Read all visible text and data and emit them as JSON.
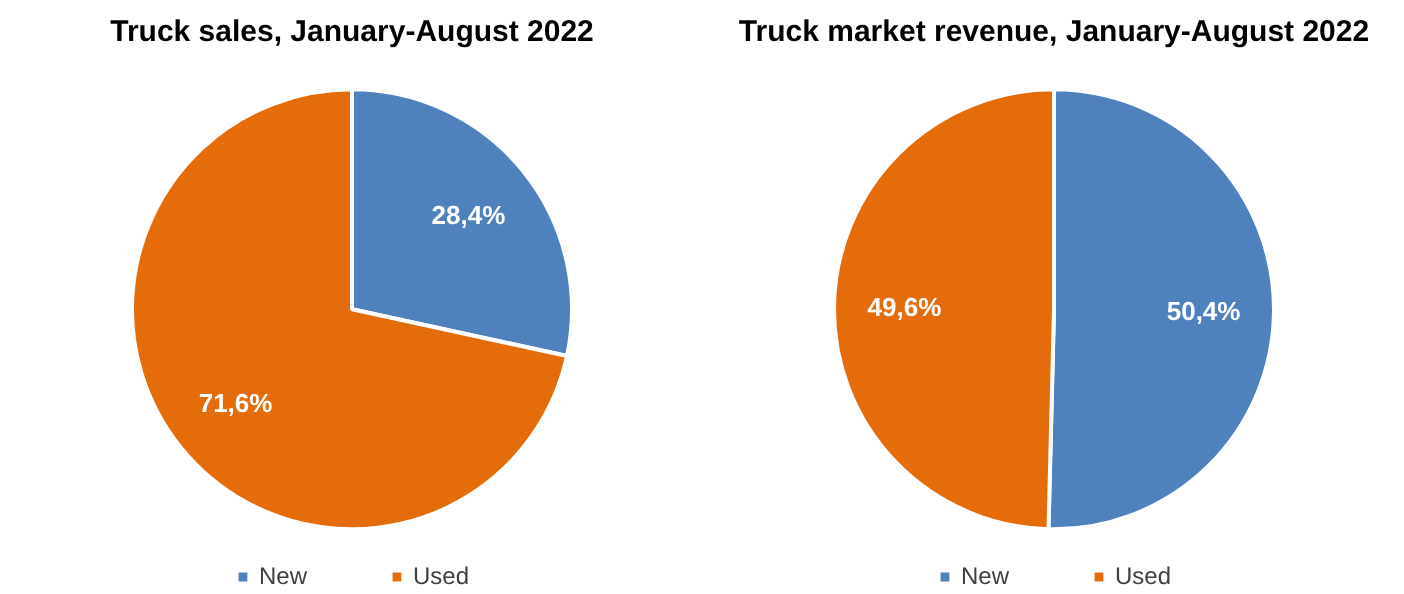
{
  "chart_data": [
    {
      "type": "pie",
      "title": "Truck sales, January-August 2022",
      "categories": [
        "New",
        "Used"
      ],
      "values": [
        28.4,
        71.6
      ],
      "colors": [
        "#4f81bd",
        "#e46c0a"
      ],
      "value_labels": [
        "28,4%",
        "71,6%"
      ],
      "legend": "bottom"
    },
    {
      "type": "pie",
      "title": "Truck market revenue, January-August 2022",
      "categories": [
        "New",
        "Used"
      ],
      "values": [
        50.4,
        49.6
      ],
      "colors": [
        "#4f81bd",
        "#e46c0a"
      ],
      "value_labels": [
        "50,4%",
        "49,6%"
      ],
      "legend": "bottom"
    }
  ]
}
